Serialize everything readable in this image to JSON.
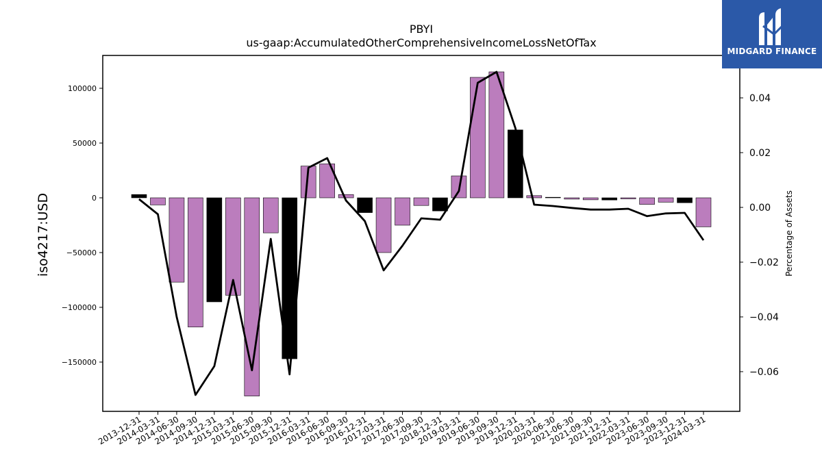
{
  "chart_data": {
    "type": "bar",
    "title": "PBYI",
    "subtitle": "us-gaap:AccumulatedOtherComprehensiveIncomeLossNetOfTax",
    "ylabel": "iso4217:USD",
    "y2label": "Percentage of Assets",
    "ylim": [
      -195000,
      130000
    ],
    "y2lim": [
      -0.0745,
      0.0555
    ],
    "yticks": [
      100000,
      50000,
      0,
      -50000,
      -100000,
      -150000
    ],
    "ytick_labels": [
      "100000",
      "50000",
      "0",
      "−50000",
      "−100000",
      "−150000"
    ],
    "y2ticks": [
      0.04,
      0.02,
      0.0,
      -0.02,
      -0.04,
      -0.06
    ],
    "y2tick_labels": [
      "0.04",
      "0.02",
      "0.00",
      "−0.02",
      "−0.04",
      "−0.06"
    ],
    "categories": [
      "2013-12-31",
      "2014-03-31",
      "2014-06-30",
      "2014-09-30",
      "2014-12-31",
      "2015-03-31",
      "2015-06-30",
      "2015-09-30",
      "2015-12-31",
      "2016-03-31",
      "2016-06-30",
      "2016-09-30",
      "2016-12-31",
      "2017-03-31",
      "2017-06-30",
      "2017-09-30",
      "2018-12-31",
      "2019-03-31",
      "2019-06-30",
      "2019-09-30",
      "2019-12-31",
      "2020-03-31",
      "2020-06-30",
      "2021-06-30",
      "2021-09-30",
      "2021-12-31",
      "2022-03-31",
      "2023-06-30",
      "2023-09-30",
      "2023-12-31",
      "2024-03-31"
    ],
    "values": [
      3000,
      -6500,
      -77000,
      -118000,
      -95000,
      -89000,
      -181000,
      -32000,
      -147000,
      29000,
      31000,
      3000,
      -13500,
      -50000,
      -25000,
      -7000,
      -12000,
      20000,
      110000,
      115000,
      62000,
      2000,
      500,
      -1200,
      -1800,
      -2000,
      -1000,
      -6000,
      -4000,
      -4500,
      -26500
    ],
    "bar_colors": [
      "#000000",
      "#bb7dbd",
      "#bb7dbd",
      "#bb7dbd",
      "#000000",
      "#bb7dbd",
      "#bb7dbd",
      "#bb7dbd",
      "#000000",
      "#bb7dbd",
      "#bb7dbd",
      "#bb7dbd",
      "#000000",
      "#bb7dbd",
      "#bb7dbd",
      "#bb7dbd",
      "#000000",
      "#bb7dbd",
      "#bb7dbd",
      "#bb7dbd",
      "#000000",
      "#bb7dbd",
      "#000000",
      "#bb7dbd",
      "#bb7dbd",
      "#000000",
      "#bb7dbd",
      "#bb7dbd",
      "#bb7dbd",
      "#000000",
      "#bb7dbd"
    ],
    "line_values": [
      0.003,
      -0.0025,
      -0.04,
      -0.0685,
      -0.058,
      -0.0265,
      -0.0595,
      -0.0115,
      -0.061,
      0.0145,
      0.018,
      0.0025,
      -0.005,
      -0.023,
      -0.014,
      -0.004,
      -0.0045,
      0.006,
      0.0455,
      0.0495,
      0.029,
      0.001,
      0.0005,
      -0.0002,
      -0.0008,
      -0.0008,
      -0.0005,
      -0.0032,
      -0.0022,
      -0.002,
      -0.012
    ],
    "line_color": "#000000",
    "grid": false
  },
  "logo": {
    "text": "MIDGARD FINANCE",
    "color": "#2b59a8"
  }
}
